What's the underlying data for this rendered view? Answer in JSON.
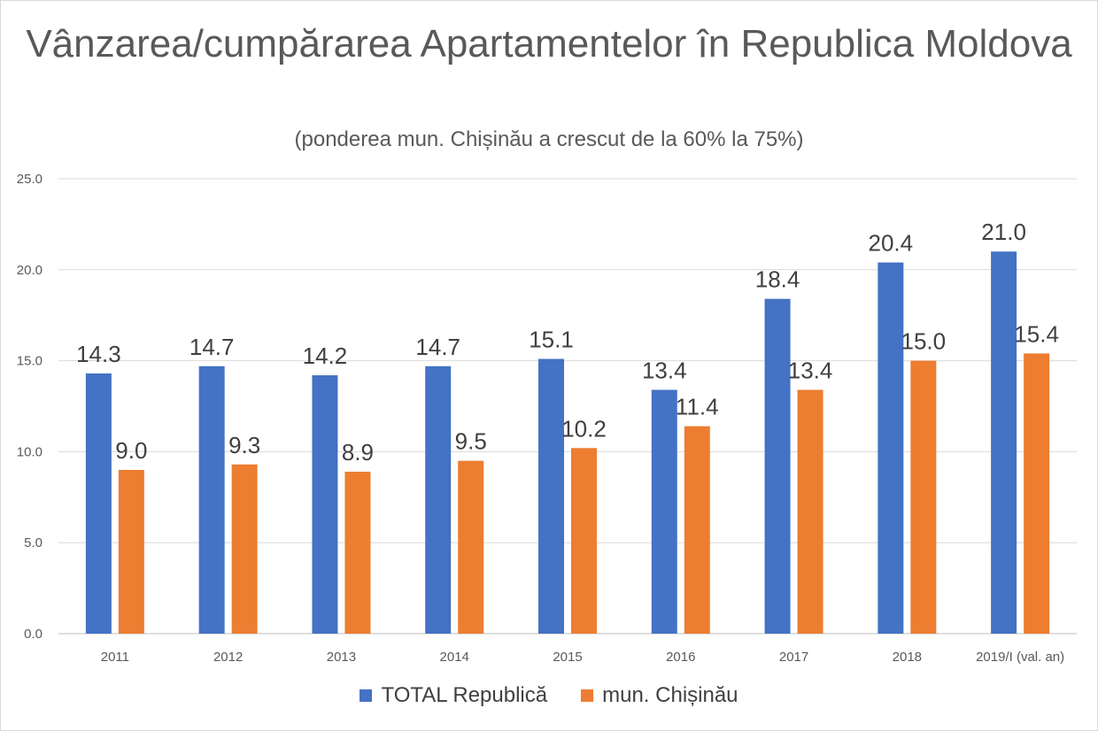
{
  "chart_data": {
    "type": "bar",
    "title": "Vânzarea/cumpărarea Apartamentelor în Republica Moldova",
    "subtitle": "(ponderea mun. Chișinău a crescut de la 60% la 75%)",
    "categories": [
      "2011",
      "2012",
      "2013",
      "2014",
      "2015",
      "2016",
      "2017",
      "2018",
      "2019/I (val. an)"
    ],
    "series": [
      {
        "name": "TOTAL Republică",
        "color": "#4472C4",
        "values": [
          14.3,
          14.7,
          14.2,
          14.7,
          15.1,
          13.4,
          18.4,
          20.4,
          21.0
        ]
      },
      {
        "name": "mun. Chișinău",
        "color": "#ED7D31",
        "values": [
          9.0,
          9.3,
          8.9,
          9.5,
          10.2,
          11.4,
          13.4,
          15.0,
          15.4
        ]
      }
    ],
    "y_ticks": [
      "0.0",
      "5.0",
      "10.0",
      "15.0",
      "20.0",
      "25.0"
    ],
    "ylim": [
      0,
      25
    ],
    "grid": true,
    "legend_position": "bottom"
  }
}
